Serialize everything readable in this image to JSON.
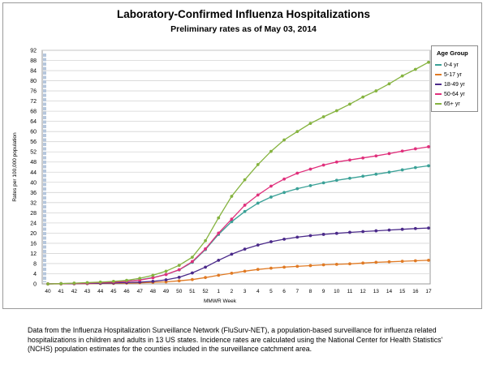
{
  "chart_data": {
    "type": "line",
    "title": "Laboratory-Confirmed Influenza Hospitalizations",
    "subtitle": "Preliminary rates as of May 03, 2014",
    "xlabel": "MMWR Week",
    "ylabel": "Rates per 100,000 population",
    "ylim": [
      0,
      92
    ],
    "yticks": [
      0,
      4,
      8,
      12,
      16,
      20,
      24,
      28,
      32,
      36,
      40,
      44,
      48,
      52,
      56,
      60,
      64,
      68,
      72,
      76,
      80,
      84,
      88,
      92
    ],
    "categories": [
      "40",
      "41",
      "42",
      "43",
      "44",
      "45",
      "46",
      "47",
      "48",
      "49",
      "50",
      "51",
      "52",
      "1",
      "2",
      "3",
      "4",
      "5",
      "6",
      "7",
      "8",
      "9",
      "10",
      "11",
      "12",
      "13",
      "14",
      "15",
      "16",
      "17"
    ],
    "grid": true,
    "legend_title": "Age Group",
    "legend_position": "right",
    "series": [
      {
        "name": "0-4 yr",
        "color": "#3aa197",
        "values": [
          0,
          0.1,
          0.2,
          0.3,
          0.5,
          0.7,
          1.0,
          1.6,
          2.5,
          3.7,
          5.5,
          8.5,
          13.5,
          19.5,
          24.5,
          28.5,
          31.8,
          34.2,
          36.0,
          37.5,
          38.7,
          39.8,
          40.8,
          41.6,
          42.4,
          43.2,
          44.0,
          44.9,
          45.8,
          46.5
        ]
      },
      {
        "name": "5-17 yr",
        "color": "#e07a24",
        "values": [
          0,
          0,
          0.05,
          0.1,
          0.15,
          0.2,
          0.3,
          0.4,
          0.6,
          0.8,
          1.2,
          1.7,
          2.5,
          3.4,
          4.2,
          5.0,
          5.7,
          6.2,
          6.6,
          6.9,
          7.2,
          7.5,
          7.7,
          7.9,
          8.2,
          8.5,
          8.7,
          8.9,
          9.1,
          9.3
        ]
      },
      {
        "name": "18-49 yr",
        "color": "#4b2a8a",
        "values": [
          0,
          0.05,
          0.1,
          0.15,
          0.25,
          0.35,
          0.5,
          0.7,
          1.0,
          1.6,
          2.6,
          4.3,
          6.6,
          9.3,
          11.7,
          13.7,
          15.3,
          16.6,
          17.6,
          18.4,
          19.0,
          19.5,
          19.9,
          20.3,
          20.6,
          20.9,
          21.2,
          21.5,
          21.8,
          22.0
        ]
      },
      {
        "name": "50-64 yr",
        "color": "#e0307c",
        "values": [
          0,
          0.1,
          0.2,
          0.3,
          0.5,
          0.7,
          1.0,
          1.5,
          2.4,
          3.7,
          5.6,
          8.8,
          13.8,
          20.0,
          25.5,
          31.0,
          35.0,
          38.5,
          41.3,
          43.6,
          45.2,
          46.8,
          48.0,
          48.8,
          49.6,
          50.4,
          51.3,
          52.3,
          53.2,
          54.0
        ]
      },
      {
        "name": "65+ yr",
        "color": "#85b33f",
        "values": [
          0,
          0.1,
          0.3,
          0.5,
          0.7,
          1.0,
          1.4,
          2.2,
          3.4,
          5.0,
          7.3,
          10.5,
          17.0,
          26.0,
          34.5,
          41.0,
          47.0,
          52.2,
          56.7,
          60.0,
          63.2,
          65.8,
          68.2,
          70.8,
          73.6,
          76.0,
          78.8,
          81.9,
          84.5,
          87.3
        ]
      }
    ]
  },
  "footnote": "Data from the Influenza  Hospitalization Surveillance Network (FluSurv-NET),  a population-based surveillance  for influenza related hospitalizations in children and adults in 13 US states. Incidence rates are calculated using the National Center for Health Statistics' (NCHS) population estimates for the counties included in the surveillance catchment area."
}
